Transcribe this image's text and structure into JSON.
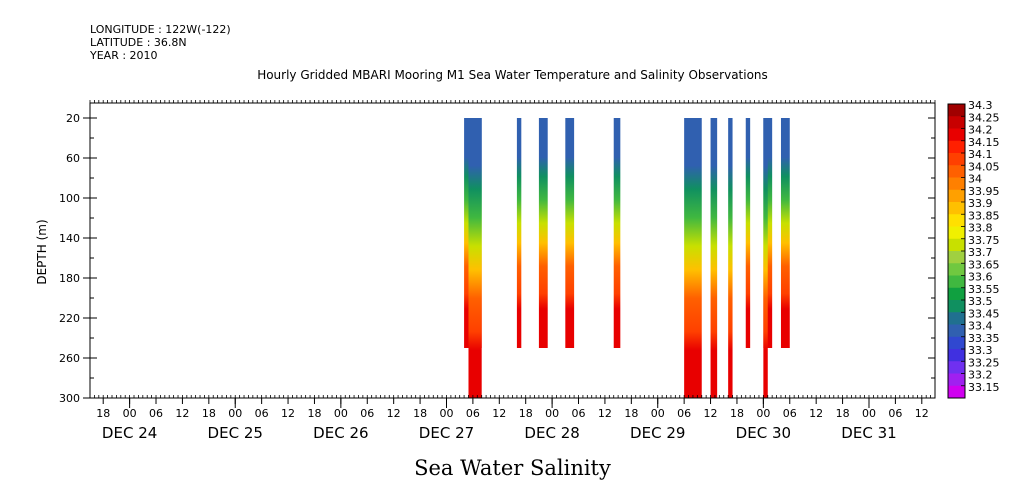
{
  "header": {
    "longitude": "LONGITUDE : 122W(-122)",
    "latitude": "LATITUDE : 36.8N",
    "year": "YEAR : 2010"
  },
  "chart_data": {
    "type": "heatmap",
    "title": "Hourly Gridded MBARI Mooring M1 Sea Water Temperature and Salinity Observations",
    "subtitle": "Sea Water Salinity",
    "xlabel": "",
    "ylabel": "DEPTH (m)",
    "x_unit": "hours since 2010-12-24 00:00",
    "xlim": [
      -9,
      183
    ],
    "ylim": [
      300,
      5
    ],
    "y_ticks": [
      20,
      60,
      100,
      140,
      180,
      220,
      260,
      300
    ],
    "hour_ticks": [
      {
        "x": -6,
        "label": "18"
      },
      {
        "x": 0,
        "label": "00"
      },
      {
        "x": 6,
        "label": "06"
      },
      {
        "x": 12,
        "label": "12"
      },
      {
        "x": 18,
        "label": "18"
      },
      {
        "x": 24,
        "label": "00"
      },
      {
        "x": 30,
        "label": "06"
      },
      {
        "x": 36,
        "label": "12"
      },
      {
        "x": 42,
        "label": "18"
      },
      {
        "x": 48,
        "label": "00"
      },
      {
        "x": 54,
        "label": "06"
      },
      {
        "x": 60,
        "label": "12"
      },
      {
        "x": 66,
        "label": "18"
      },
      {
        "x": 72,
        "label": "00"
      },
      {
        "x": 78,
        "label": "06"
      },
      {
        "x": 84,
        "label": "12"
      },
      {
        "x": 90,
        "label": "18"
      },
      {
        "x": 96,
        "label": "00"
      },
      {
        "x": 102,
        "label": "06"
      },
      {
        "x": 108,
        "label": "12"
      },
      {
        "x": 114,
        "label": "18"
      },
      {
        "x": 120,
        "label": "00"
      },
      {
        "x": 126,
        "label": "06"
      },
      {
        "x": 132,
        "label": "12"
      },
      {
        "x": 138,
        "label": "18"
      },
      {
        "x": 144,
        "label": "00"
      },
      {
        "x": 150,
        "label": "06"
      },
      {
        "x": 156,
        "label": "12"
      },
      {
        "x": 162,
        "label": "18"
      },
      {
        "x": 168,
        "label": "00"
      },
      {
        "x": 174,
        "label": "06"
      },
      {
        "x": 180,
        "label": "12"
      }
    ],
    "day_labels": [
      {
        "x": 0,
        "label": "DEC 24"
      },
      {
        "x": 24,
        "label": "DEC 25"
      },
      {
        "x": 48,
        "label": "DEC 26"
      },
      {
        "x": 72,
        "label": "DEC 27"
      },
      {
        "x": 96,
        "label": "DEC 28"
      },
      {
        "x": 120,
        "label": "DEC 29"
      },
      {
        "x": 144,
        "label": "DEC 30"
      },
      {
        "x": 168,
        "label": "DEC 31"
      }
    ],
    "colorbar": {
      "levels": [
        "34.3",
        "34.25",
        "34.2",
        "34.15",
        "34.1",
        "34.05",
        "34",
        "33.95",
        "33.9",
        "33.85",
        "33.8",
        "33.75",
        "33.7",
        "33.65",
        "33.6",
        "33.55",
        "33.5",
        "33.45",
        "33.4",
        "33.35",
        "33.3",
        "33.25",
        "33.2",
        "33.15"
      ],
      "colors": [
        "#a00000",
        "#c80000",
        "#e80000",
        "#ff2000",
        "#ff4000",
        "#ff6000",
        "#ff8000",
        "#ffa000",
        "#ffc000",
        "#ffe000",
        "#f0f000",
        "#c8e000",
        "#a0d040",
        "#70c840",
        "#40b840",
        "#10a040",
        "#109060",
        "#207090",
        "#3060b0",
        "#3048d0",
        "#4030e0",
        "#7030f0",
        "#a020f0",
        "#d000f0"
      ]
    },
    "profile": [
      {
        "depth": 20,
        "value": 33.4
      },
      {
        "depth": 55,
        "value": 33.42
      },
      {
        "depth": 80,
        "value": 33.52
      },
      {
        "depth": 110,
        "value": 33.6
      },
      {
        "depth": 140,
        "value": 33.75
      },
      {
        "depth": 165,
        "value": 33.92
      },
      {
        "depth": 195,
        "value": 34.05
      },
      {
        "depth": 230,
        "value": 34.12
      },
      {
        "depth": 250,
        "value": 34.2
      },
      {
        "depth": 275,
        "value": 34.22
      },
      {
        "depth": 300,
        "value": 34.22
      }
    ],
    "segments": [
      {
        "x0": 76,
        "x1": 80,
        "dmax": 250
      },
      {
        "x0": 77,
        "x1": 80,
        "dmax": 300
      },
      {
        "x0": 88,
        "x1": 89,
        "dmax": 250
      },
      {
        "x0": 93,
        "x1": 95,
        "dmax": 250
      },
      {
        "x0": 99,
        "x1": 101,
        "dmax": 250
      },
      {
        "x0": 110,
        "x1": 111.5,
        "dmax": 250
      },
      {
        "x0": 126,
        "x1": 130,
        "dmax": 300
      },
      {
        "x0": 132,
        "x1": 133.5,
        "dmax": 300
      },
      {
        "x0": 136,
        "x1": 137,
        "dmax": 300
      },
      {
        "x0": 140,
        "x1": 141,
        "dmax": 250
      },
      {
        "x0": 144,
        "x1": 146,
        "dmax": 250
      },
      {
        "x0": 144,
        "x1": 145,
        "dmax": 300
      },
      {
        "x0": 148,
        "x1": 150,
        "dmax": 250
      }
    ]
  }
}
